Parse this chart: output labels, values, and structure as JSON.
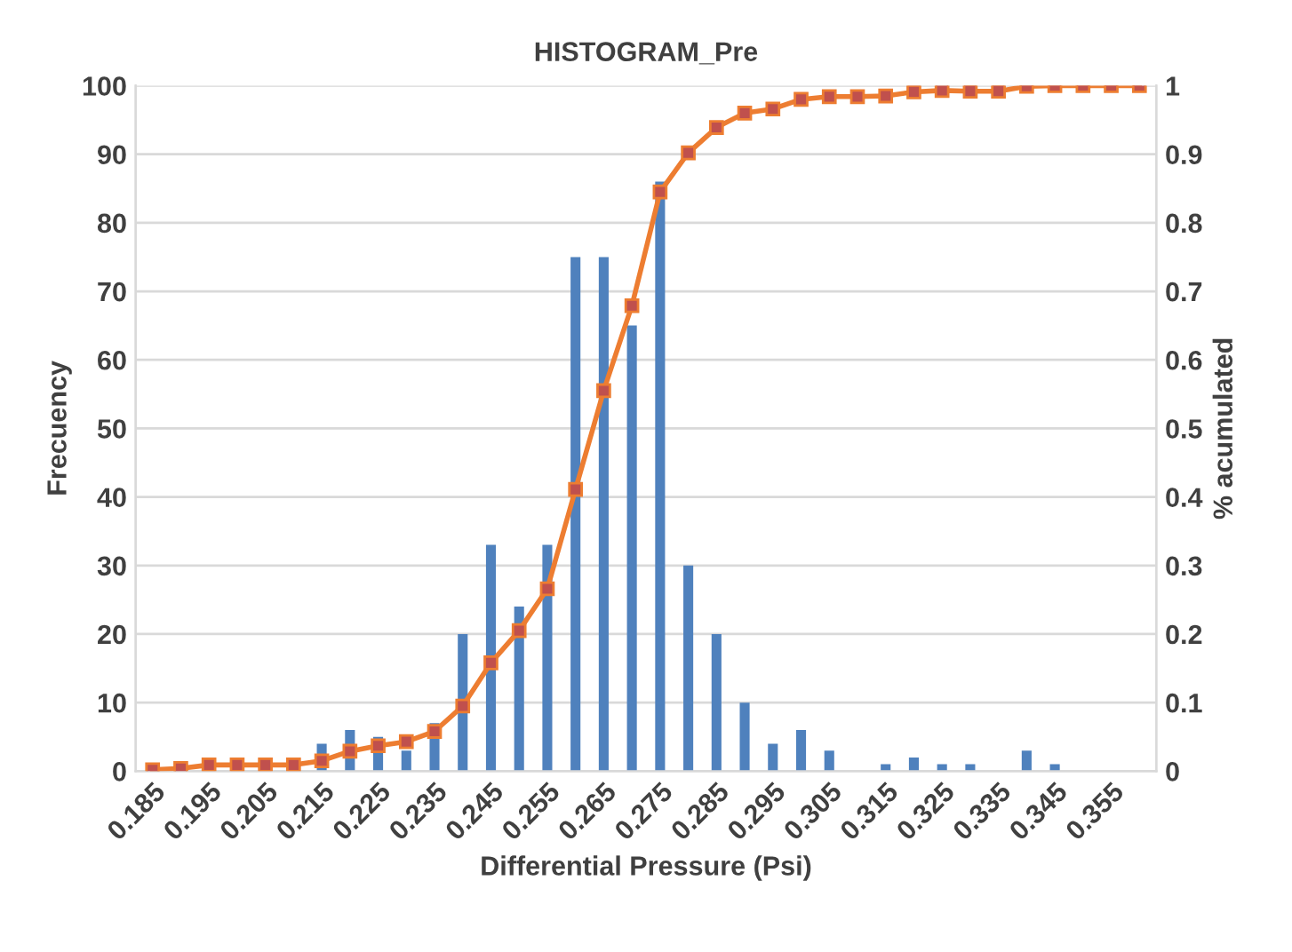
{
  "chart_data": {
    "type": "bar",
    "title": "HISTOGRAM_Pre",
    "xlabel": "Differential Pressure (Psi)",
    "ylabel": "Frecuency",
    "y2label": "% acumulated",
    "categories": [
      "0.185",
      null,
      "0.195",
      null,
      "0.205",
      null,
      "0.215",
      null,
      "0.225",
      null,
      "0.235",
      null,
      "0.245",
      null,
      "0.255",
      null,
      "0.265",
      null,
      "0.275",
      null,
      "0.285",
      null,
      "0.295",
      null,
      "0.305",
      null,
      "0.315",
      null,
      "0.325",
      null,
      "0.335",
      null,
      "0.345",
      null,
      "0.355",
      null
    ],
    "series": [
      {
        "color": "#4f81bd",
        "values": [
          0,
          0,
          0,
          0,
          0,
          0,
          4,
          6,
          5,
          3,
          7,
          20,
          33,
          24,
          33,
          75,
          75,
          65,
          86,
          30,
          20,
          10,
          4,
          6,
          3,
          0,
          1,
          2,
          1,
          1,
          0,
          3,
          1,
          0,
          0,
          0
        ]
      },
      {
        "type": "line",
        "axis": "y2",
        "color": "#ed7d31",
        "marker": "square",
        "values": [
          0.002,
          0.004,
          0.009,
          0.009,
          0.009,
          0.009,
          0.015,
          0.029,
          0.037,
          0.043,
          0.058,
          0.095,
          0.158,
          0.205,
          0.266,
          0.411,
          0.555,
          0.679,
          0.845,
          0.902,
          0.939,
          0.96,
          0.966,
          0.98,
          0.984,
          0.984,
          0.985,
          0.991,
          0.993,
          0.992,
          0.992,
          0.999,
          1.0,
          1.0,
          1.0,
          1.0
        ]
      }
    ],
    "ylim": [
      0,
      100
    ],
    "yticks": [
      0,
      10,
      20,
      30,
      40,
      50,
      60,
      70,
      80,
      90,
      100
    ],
    "y2lim": [
      0,
      1
    ],
    "y2ticks": [
      0,
      0.1,
      0.2,
      0.3,
      0.4,
      0.5,
      0.6,
      0.7,
      0.8,
      0.9,
      1
    ],
    "grid": "y"
  }
}
